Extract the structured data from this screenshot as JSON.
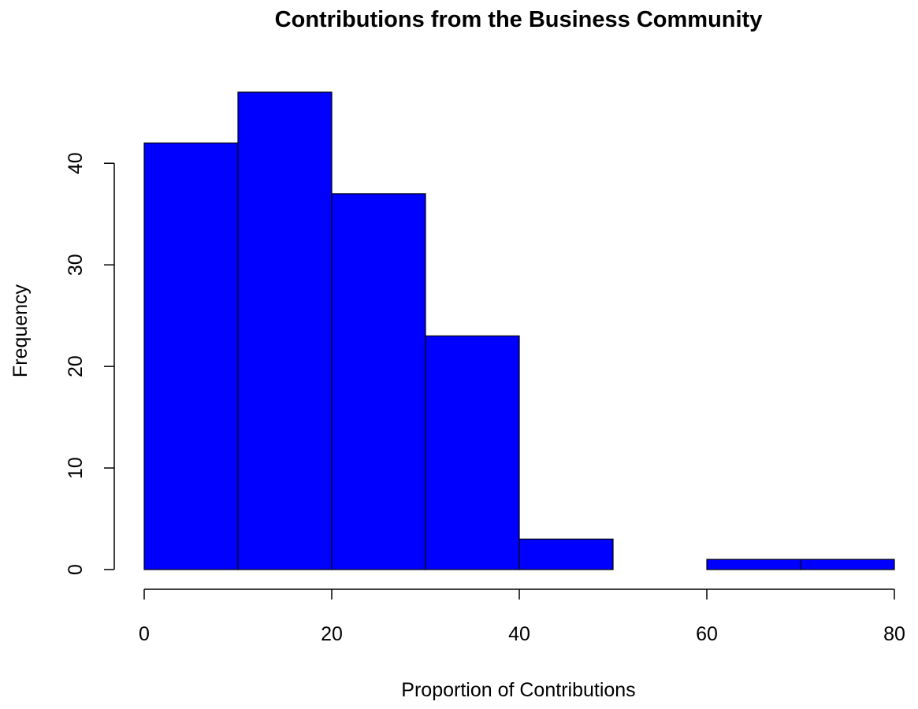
{
  "chart_data": {
    "type": "bar",
    "title": "Contributions from the Business Community",
    "xlabel": "Proportion of Contributions",
    "ylabel": "Frequency",
    "bins": [
      {
        "x0": 0,
        "x1": 10,
        "count": 42
      },
      {
        "x0": 10,
        "x1": 20,
        "count": 47
      },
      {
        "x0": 20,
        "x1": 30,
        "count": 37
      },
      {
        "x0": 30,
        "x1": 40,
        "count": 23
      },
      {
        "x0": 40,
        "x1": 50,
        "count": 3
      },
      {
        "x0": 50,
        "x1": 60,
        "count": 0
      },
      {
        "x0": 60,
        "x1": 70,
        "count": 1
      },
      {
        "x0": 70,
        "x1": 80,
        "count": 1
      }
    ],
    "xlim": [
      0,
      80
    ],
    "ylim": [
      0,
      47
    ],
    "xticks": [
      0,
      20,
      40,
      60,
      80
    ],
    "yticks": [
      0,
      10,
      20,
      30,
      40
    ],
    "bar_color": "#0000ff",
    "bar_edge_color": "#000000",
    "grid": false,
    "legend": "none"
  }
}
